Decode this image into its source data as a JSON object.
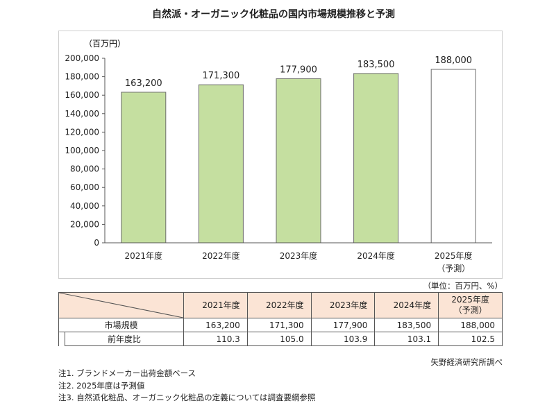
{
  "chart_data": {
    "type": "bar",
    "title": "自然派・オーガニック化粧品の国内市場規模推移と予測",
    "unit_label": "（百万円）",
    "categories": [
      "2021年度",
      "2022年度",
      "2023年度",
      "2024年度",
      "2025年度"
    ],
    "category_subtitles": [
      "",
      "",
      "",
      "",
      "（予測）"
    ],
    "values": [
      163200,
      171300,
      177900,
      183500,
      188000
    ],
    "value_labels": [
      "163,200",
      "171,300",
      "177,900",
      "183,500",
      "188,000"
    ],
    "ylim": [
      0,
      200000
    ],
    "yticks": [
      "0",
      "20,000",
      "40,000",
      "60,000",
      "80,000",
      "100,000",
      "120,000",
      "140,000",
      "160,000",
      "180,000",
      "200,000"
    ],
    "bar_color": "#c5dfa0",
    "forecast_bar_color": "#ffffff",
    "bar_edge_color": "#6b6b6b",
    "grid": false
  },
  "table": {
    "unit_note": "（単位：百万円、%）",
    "header_color": "#fbe4d5",
    "headers": [
      "2021年度",
      "2022年度",
      "2023年度",
      "2024年度",
      "2025年度"
    ],
    "header_sub_last": "（予測）",
    "rows": [
      {
        "label": "市場規模",
        "values": [
          "163,200",
          "171,300",
          "177,900",
          "183,500",
          "188,000"
        ]
      },
      {
        "label": "前年度比",
        "values": [
          "110.3",
          "105.0",
          "103.9",
          "103.1",
          "102.5"
        ]
      }
    ]
  },
  "source": "矢野経済研究所調べ",
  "notes": [
    "注1. ブランドメーカー出荷金額ベース",
    "注2. 2025年度は予測値",
    "注3. 自然派化粧品、オーガニック化粧品の定義については調査要綱参照"
  ]
}
